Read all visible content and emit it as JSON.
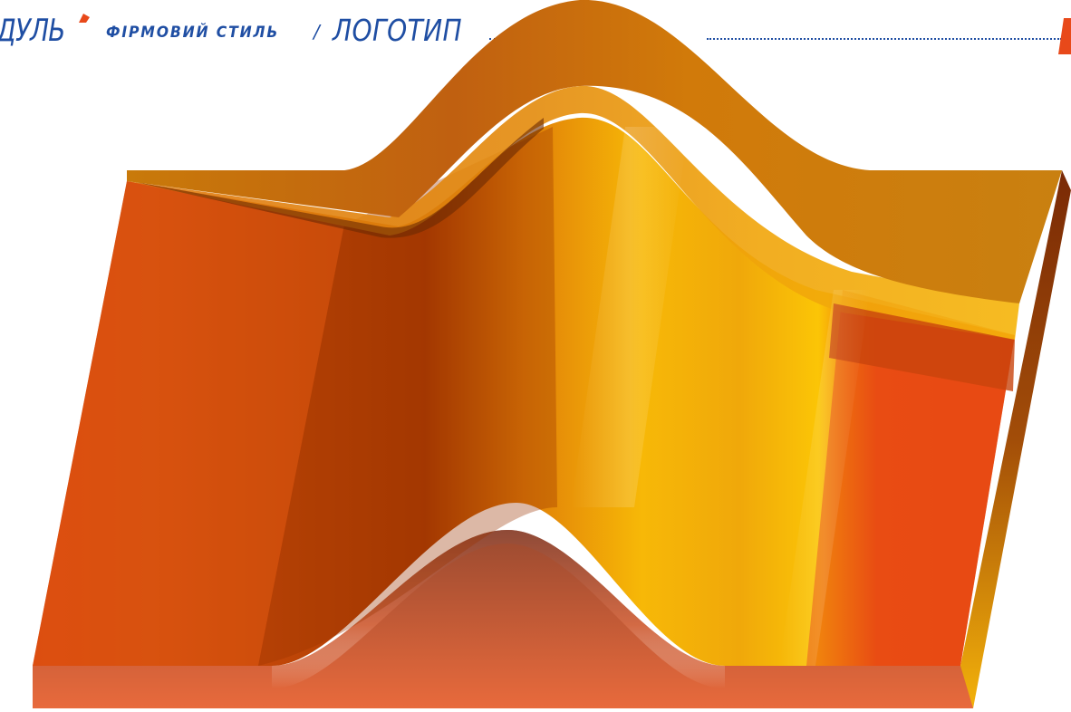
{
  "header": {
    "brand": "ДУЛЬ",
    "section": "ФІРМОВИЙ СТИЛЬ",
    "separator": "/",
    "title": "ЛОГОТИП"
  },
  "colors": {
    "brand_blue": "#1f4ea3",
    "accent_orange": "#e8491a"
  },
  "artwork": {
    "subject": "orange-3d-wave-logo-sculpture"
  }
}
